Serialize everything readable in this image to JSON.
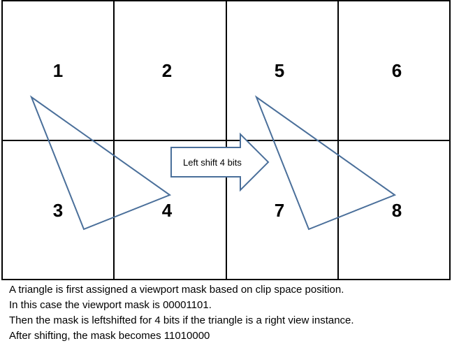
{
  "grid": {
    "cells": [
      {
        "label": "1"
      },
      {
        "label": "2"
      },
      {
        "label": "5"
      },
      {
        "label": "6"
      },
      {
        "label": "3"
      },
      {
        "label": "4"
      },
      {
        "label": "7"
      },
      {
        "label": "8"
      }
    ]
  },
  "arrow": {
    "label": "Left shift 4 bits"
  },
  "caption": [
    "A triangle is first assigned a viewport mask based on clip space position.",
    "In this case the viewport mask is 00001101.",
    "Then the mask is leftshifted for 4 bits if the triangle is a right view instance.",
    "After shifting, the mask becomes 11010000"
  ],
  "colors": {
    "stroke": "#000000",
    "triangle": "#4a6f9a"
  }
}
